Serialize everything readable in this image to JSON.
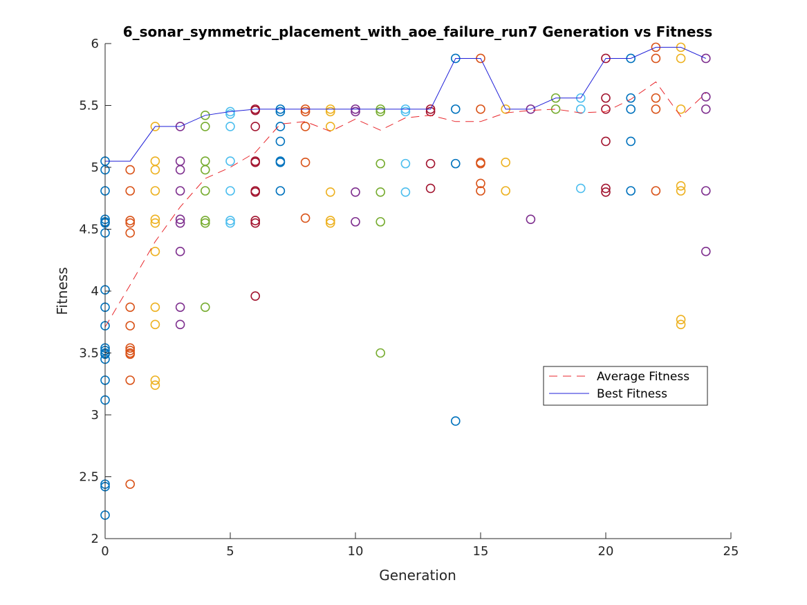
{
  "chart_data": {
    "type": "scatter",
    "title": "6_sonar_symmetric_placement_with_aoe_failure_run7 Generation vs Fitness",
    "xlabel": "Generation",
    "ylabel": "Fitness",
    "xlim": [
      0,
      25
    ],
    "ylim": [
      2,
      6
    ],
    "xticks": [
      "0",
      "5",
      "10",
      "15",
      "20",
      "25"
    ],
    "yticks": [
      "2",
      "2.5",
      "3",
      "3.5",
      "4",
      "4.5",
      "5",
      "5.5",
      "6"
    ],
    "grid": false,
    "legend_position": "right-middle",
    "colors": {
      "average_line": "#e8262b",
      "best_line": "#1f1fd8",
      "axis": "#262626",
      "generation_palette": [
        "#0072bd",
        "#d95319",
        "#edb120",
        "#7e2f8e",
        "#77ac30",
        "#4dbeee",
        "#a2142f"
      ]
    },
    "series": [
      {
        "name": "Average Fitness",
        "kind": "line",
        "style": "dashed",
        "x": [
          0,
          1,
          2,
          3,
          4,
          5,
          6,
          7,
          8,
          9,
          10,
          11,
          12,
          13,
          14,
          15,
          16,
          17,
          18,
          19,
          20,
          21,
          22,
          23,
          24
        ],
        "y": [
          3.71,
          4.05,
          4.4,
          4.68,
          4.91,
          5.0,
          5.12,
          5.35,
          5.37,
          5.29,
          5.39,
          5.3,
          5.4,
          5.42,
          5.37,
          5.37,
          5.44,
          5.46,
          5.47,
          5.44,
          5.45,
          5.55,
          5.69,
          5.41,
          5.6
        ]
      },
      {
        "name": "Best Fitness",
        "kind": "line",
        "style": "solid",
        "x": [
          0,
          1,
          2,
          3,
          4,
          5,
          6,
          7,
          8,
          9,
          10,
          11,
          12,
          13,
          14,
          15,
          16,
          17,
          18,
          19,
          20,
          21,
          22,
          23,
          24
        ],
        "y": [
          5.05,
          5.05,
          5.33,
          5.33,
          5.42,
          5.45,
          5.47,
          5.47,
          5.47,
          5.47,
          5.47,
          5.47,
          5.47,
          5.47,
          5.88,
          5.88,
          5.47,
          5.47,
          5.56,
          5.56,
          5.88,
          5.88,
          5.97,
          5.97,
          5.88
        ]
      }
    ],
    "points": [
      {
        "gen": 0,
        "values": [
          5.05,
          4.98,
          4.81,
          4.58,
          4.56,
          4.55,
          4.47,
          4.01,
          3.87,
          3.72,
          3.54,
          3.52,
          3.5,
          3.49,
          3.45,
          3.28,
          3.12,
          2.44,
          2.42,
          2.19
        ]
      },
      {
        "gen": 1,
        "values": [
          4.98,
          4.81,
          4.57,
          4.55,
          4.47,
          3.87,
          3.72,
          3.54,
          3.52,
          3.5,
          3.49,
          3.28,
          2.44
        ]
      },
      {
        "gen": 2,
        "values": [
          5.33,
          5.05,
          4.98,
          4.81,
          4.58,
          4.55,
          4.32,
          3.87,
          3.73,
          3.28,
          3.24
        ]
      },
      {
        "gen": 3,
        "values": [
          5.33,
          5.05,
          4.98,
          4.81,
          4.58,
          4.55,
          4.32,
          3.87,
          3.73
        ]
      },
      {
        "gen": 4,
        "values": [
          5.42,
          5.33,
          5.05,
          4.98,
          4.81,
          4.57,
          4.55,
          3.87
        ]
      },
      {
        "gen": 5,
        "values": [
          5.45,
          5.43,
          5.33,
          5.05,
          4.81,
          4.57,
          4.55
        ]
      },
      {
        "gen": 6,
        "values": [
          5.47,
          5.46,
          5.33,
          5.05,
          5.04,
          4.81,
          4.8,
          4.57,
          4.55,
          3.96
        ]
      },
      {
        "gen": 7,
        "values": [
          5.47,
          5.45,
          5.33,
          5.21,
          5.05,
          5.04,
          4.81
        ]
      },
      {
        "gen": 8,
        "values": [
          5.47,
          5.45,
          5.33,
          5.04,
          4.59
        ]
      },
      {
        "gen": 9,
        "values": [
          5.47,
          5.45,
          5.33,
          4.8,
          4.57,
          4.55
        ]
      },
      {
        "gen": 10,
        "values": [
          5.47,
          5.45,
          4.8,
          4.56
        ]
      },
      {
        "gen": 11,
        "values": [
          5.47,
          5.45,
          5.03,
          4.8,
          4.56,
          3.5
        ]
      },
      {
        "gen": 12,
        "values": [
          5.47,
          5.45,
          5.03,
          4.8
        ]
      },
      {
        "gen": 13,
        "values": [
          5.47,
          5.45,
          5.03,
          4.83
        ]
      },
      {
        "gen": 14,
        "values": [
          5.88,
          5.47,
          5.03,
          2.95
        ]
      },
      {
        "gen": 15,
        "values": [
          5.88,
          5.47,
          5.04,
          5.03,
          4.87,
          4.81
        ]
      },
      {
        "gen": 16,
        "values": [
          5.47,
          5.04,
          4.81
        ]
      },
      {
        "gen": 17,
        "values": [
          5.47,
          4.58
        ]
      },
      {
        "gen": 18,
        "values": [
          5.56,
          5.47
        ]
      },
      {
        "gen": 19,
        "values": [
          5.56,
          5.47,
          4.83
        ]
      },
      {
        "gen": 20,
        "values": [
          5.88,
          5.56,
          5.47,
          5.21,
          4.83,
          4.8
        ]
      },
      {
        "gen": 21,
        "values": [
          5.88,
          5.56,
          5.47,
          5.21,
          4.81
        ]
      },
      {
        "gen": 22,
        "values": [
          5.97,
          5.88,
          5.56,
          5.47,
          4.81
        ]
      },
      {
        "gen": 23,
        "values": [
          5.97,
          5.88,
          5.47,
          4.85,
          4.81,
          3.77,
          3.73
        ]
      },
      {
        "gen": 24,
        "values": [
          5.88,
          5.57,
          5.47,
          4.81,
          4.32
        ]
      }
    ]
  }
}
